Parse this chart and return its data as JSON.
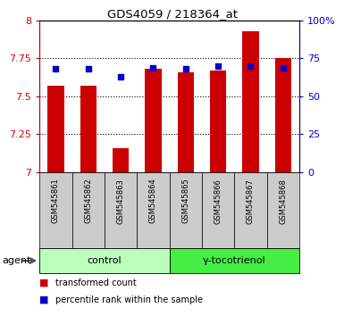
{
  "title": "GDS4059 / 218364_at",
  "samples": [
    "GSM545861",
    "GSM545862",
    "GSM545863",
    "GSM545864",
    "GSM545865",
    "GSM545866",
    "GSM545867",
    "GSM545868"
  ],
  "transformed_count": [
    7.57,
    7.57,
    7.16,
    7.68,
    7.66,
    7.67,
    7.93,
    7.75
  ],
  "percentile_rank": [
    68,
    68,
    63,
    69,
    68,
    70,
    70,
    69
  ],
  "ylim_left": [
    7.0,
    8.0
  ],
  "ylim_right": [
    0,
    100
  ],
  "yticks_left": [
    7.0,
    7.25,
    7.5,
    7.75,
    8.0
  ],
  "yticks_right": [
    0,
    25,
    50,
    75,
    100
  ],
  "ytick_labels_left": [
    "7",
    "7.25",
    "7.5",
    "7.75",
    "8"
  ],
  "ytick_labels_right": [
    "0",
    "25",
    "50",
    "75",
    "100%"
  ],
  "bar_color": "#cc0000",
  "dot_color": "#0000cc",
  "bar_bottom": 7.0,
  "groups": [
    {
      "label": "control",
      "indices": [
        0,
        1,
        2,
        3
      ],
      "color": "#bbffbb"
    },
    {
      "label": "γ-tocotrienol",
      "indices": [
        4,
        5,
        6,
        7
      ],
      "color": "#44ee44"
    }
  ],
  "agent_label": "agent",
  "legend_items": [
    {
      "color": "#cc0000",
      "label": "transformed count"
    },
    {
      "color": "#0000cc",
      "label": "percentile rank within the sample"
    }
  ],
  "bar_width": 0.5,
  "dot_size": 20,
  "xtick_bg": "#cccccc",
  "plot_bg": "#ffffff"
}
